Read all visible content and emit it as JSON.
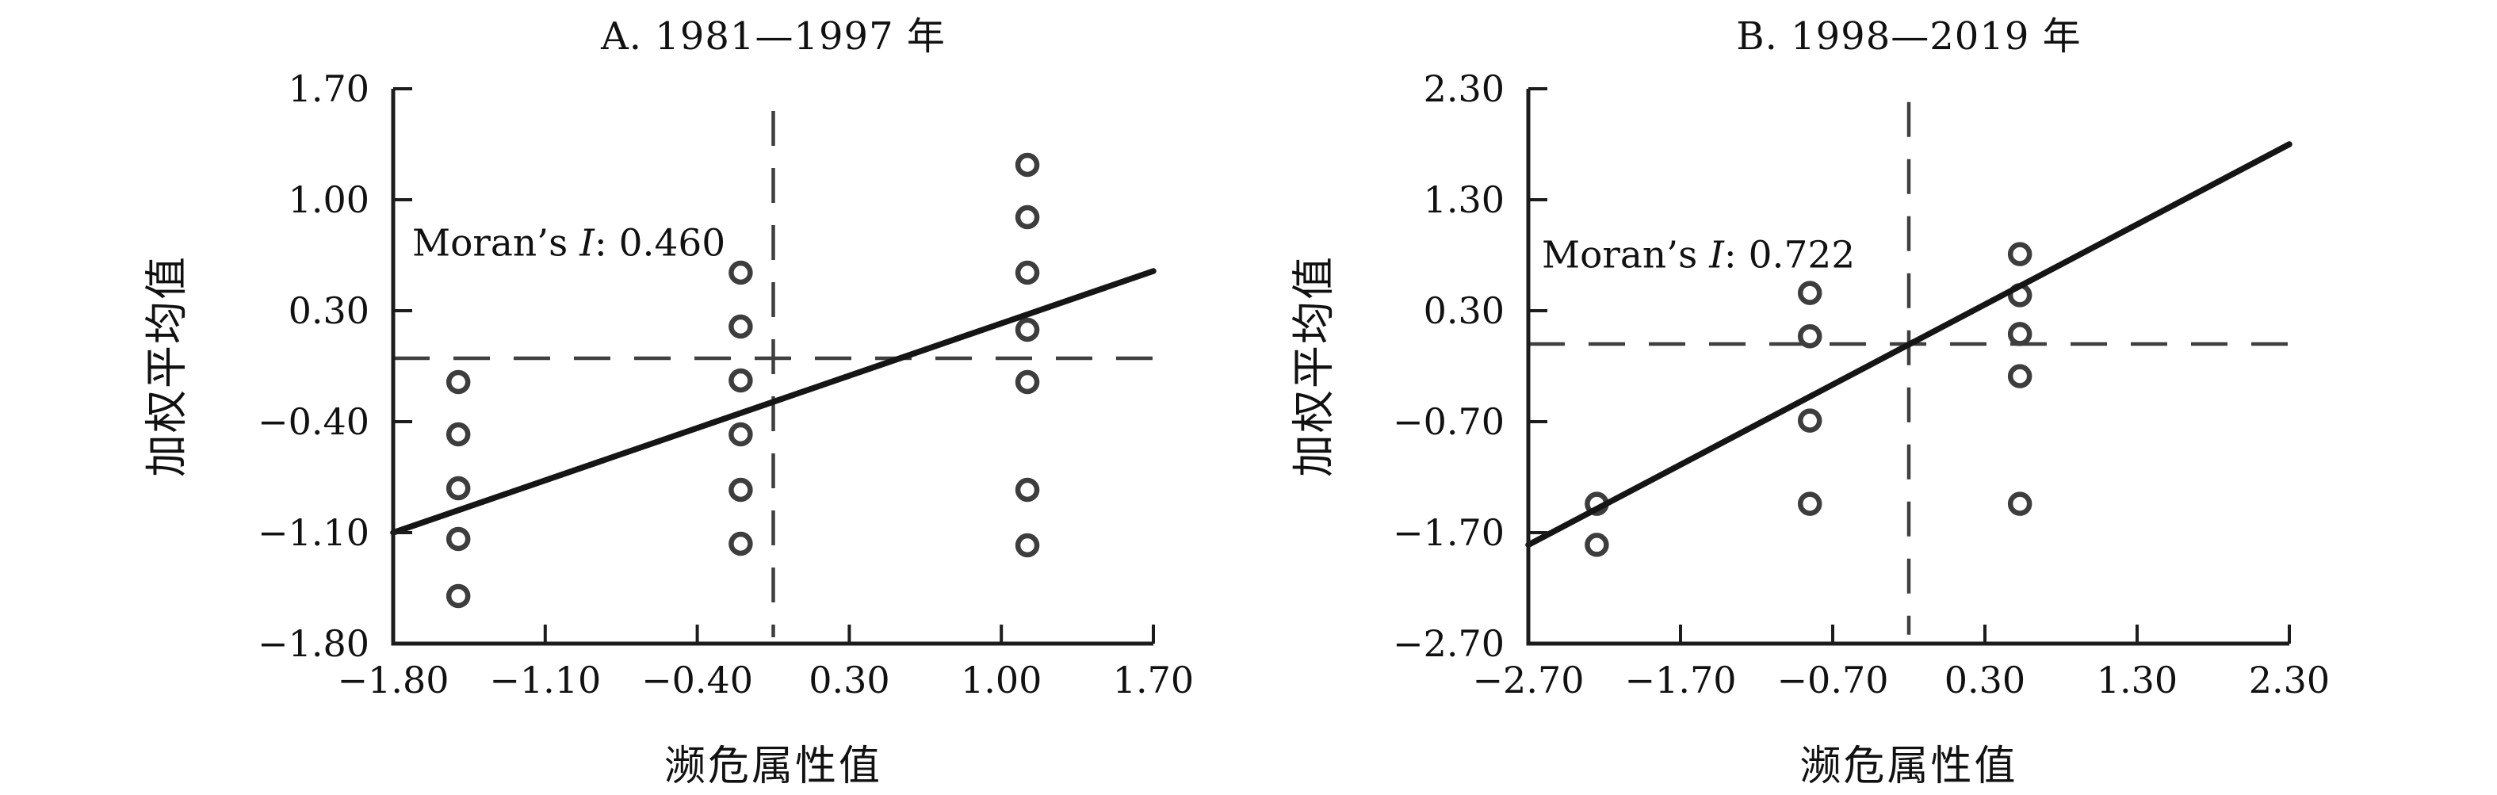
{
  "figure": {
    "background_color": "#ffffff",
    "text_color": "#111111",
    "axis_color": "#1c1c1c",
    "point_ring_color": "#3d3d3d",
    "trend_color": "#151515",
    "dash_color": "#3f3f3f"
  },
  "chart_data": [
    {
      "type": "scatter",
      "title": "A. 1981—1997 年",
      "xlabel": "濒危属性值",
      "ylabel": "加权平均值",
      "annotation": {
        "prefix": "Moran’s",
        "italic": "I",
        "suffix": ": 0.460"
      },
      "moran_i_value": 0.46,
      "xlim": [
        -1.8,
        1.7
      ],
      "ylim": [
        -1.8,
        1.7
      ],
      "x_ticks": [
        -1.8,
        -1.1,
        -0.4,
        0.3,
        1.0,
        1.7
      ],
      "y_ticks": [
        1.7,
        1.0,
        0.3,
        -0.4,
        -1.1,
        -1.8
      ],
      "x_tick_labels": [
        "−1.80",
        "−1.10",
        "−0.40",
        "0.30",
        "1.00",
        "1.70"
      ],
      "y_tick_labels": [
        "1.70",
        "1.00",
        "0.30",
        "−0.40",
        "−1.10",
        "−1.80"
      ],
      "grid": false,
      "mean_lines": {
        "vertical_x": -0.05,
        "horizontal_y": 0.0,
        "vertical_span": [
          1.56,
          -1.76
        ],
        "horizontal_span": [
          -1.8,
          1.77
        ]
      },
      "trend_line": {
        "x1": -1.8,
        "y1": -1.1,
        "x2": 1.7,
        "y2": 0.55
      },
      "points": [
        [
          -1.5,
          -0.15
        ],
        [
          -1.5,
          -0.48
        ],
        [
          -1.5,
          -0.82
        ],
        [
          -1.5,
          -1.14
        ],
        [
          -1.5,
          -1.5
        ],
        [
          -0.2,
          0.54
        ],
        [
          -0.2,
          0.2
        ],
        [
          -0.2,
          -0.14
        ],
        [
          -0.2,
          -0.48
        ],
        [
          -0.2,
          -0.83
        ],
        [
          -0.2,
          -1.17
        ],
        [
          1.12,
          1.22
        ],
        [
          1.12,
          0.89
        ],
        [
          1.12,
          0.54
        ],
        [
          1.12,
          0.18
        ],
        [
          1.12,
          -0.15
        ],
        [
          1.12,
          -0.83
        ],
        [
          1.12,
          -1.18
        ]
      ]
    },
    {
      "type": "scatter",
      "title": "B. 1998—2019 年",
      "xlabel": "濒危属性值",
      "ylabel": "加权平均值",
      "annotation": {
        "prefix": "Moran’s",
        "italic": "I",
        "suffix": ": 0.722"
      },
      "moran_i_value": 0.722,
      "xlim": [
        -2.7,
        2.3
      ],
      "ylim": [
        -2.7,
        2.3
      ],
      "x_ticks": [
        -2.7,
        -1.7,
        -0.7,
        0.3,
        1.3,
        2.3
      ],
      "y_ticks": [
        2.3,
        1.3,
        0.3,
        -0.7,
        -1.7,
        -2.7
      ],
      "x_tick_labels": [
        "−2.70",
        "−1.70",
        "−0.70",
        "0.30",
        "1.30",
        "2.30"
      ],
      "y_tick_labels": [
        "2.30",
        "1.30",
        "0.30",
        "−0.70",
        "−1.70",
        "−2.70"
      ],
      "grid": false,
      "mean_lines": {
        "vertical_x": -0.2,
        "horizontal_y": 0.0,
        "vertical_span": [
          2.18,
          -2.62
        ],
        "horizontal_span": [
          -2.7,
          2.35
        ]
      },
      "trend_line": {
        "x1": -2.7,
        "y1": -1.81,
        "x2": 2.3,
        "y2": 1.8
      },
      "points": [
        [
          -2.25,
          -1.44
        ],
        [
          -2.25,
          -1.81
        ],
        [
          -0.85,
          0.46
        ],
        [
          -0.85,
          0.07
        ],
        [
          -0.85,
          -0.69
        ],
        [
          -0.85,
          -1.44
        ],
        [
          0.53,
          0.81
        ],
        [
          0.53,
          0.44
        ],
        [
          0.53,
          0.09
        ],
        [
          0.53,
          -0.29
        ],
        [
          0.53,
          -1.44
        ]
      ]
    }
  ]
}
